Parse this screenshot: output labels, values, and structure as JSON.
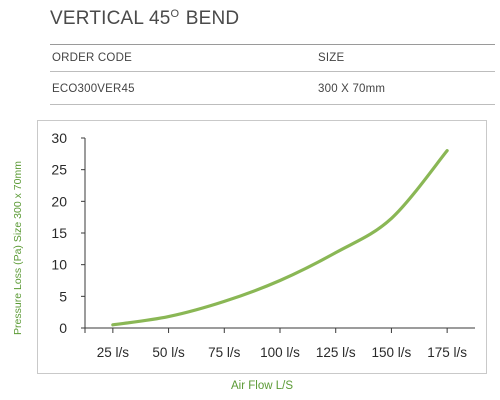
{
  "header": {
    "title_main": "VERTICAL 45",
    "title_sup": "O",
    "title_end": " BEND"
  },
  "spec_table": {
    "columns": [
      "ORDER CODE",
      "SIZE"
    ],
    "row": [
      "ECO300VER45",
      "300 X 70mm"
    ]
  },
  "colors": {
    "line": "#8ab755",
    "axis_label": "#5b9a35",
    "tick": "#2a2a2a"
  },
  "chart_data": {
    "type": "line",
    "categories": [
      "25 l/s",
      "50 l/s",
      "75 l/s",
      "100 l/s",
      "125 l/s",
      "150 l/s",
      "175 l/s"
    ],
    "x": [
      25,
      50,
      75,
      100,
      125,
      150,
      175
    ],
    "series": [
      {
        "values": [
          0.5,
          1.8,
          4.2,
          7.5,
          11.9,
          17.3,
          28.0
        ]
      }
    ],
    "xlim": [
      12.5,
      187.5
    ],
    "ylim": [
      0,
      30
    ],
    "y_ticks": [
      0,
      5,
      10,
      15,
      20,
      25,
      30
    ],
    "title": "",
    "xlabel": "Air Flow L/S",
    "ylabel": "Pressure Loss (Pa) Size 300 x 70mm",
    "grid": false,
    "legend": "none"
  }
}
